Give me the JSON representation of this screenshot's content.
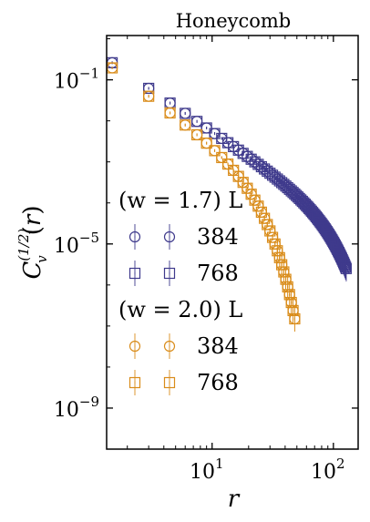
{
  "chart_data": {
    "type": "scatter",
    "title": "Honeycomb",
    "xlabel": "r",
    "ylabel": "C_v^(1/2)(r)",
    "xscale": "log",
    "yscale": "log",
    "xlim": [
      1.35,
      160
    ],
    "ylim": [
      1e-10,
      1.2
    ],
    "x_ticks": [
      {
        "value": 10,
        "base": "10",
        "exp": "1"
      },
      {
        "value": 100,
        "base": "10",
        "exp": "2"
      }
    ],
    "y_ticks": [
      {
        "value": 0.1,
        "base": "10",
        "exp": "−1"
      },
      {
        "value": 1e-05,
        "base": "10",
        "exp": "−5"
      },
      {
        "value": 1e-09,
        "base": "10",
        "exp": "−9"
      }
    ],
    "colors": {
      "purple": "#3f3a8c",
      "orange": "#d98c1a"
    },
    "legend": {
      "placement": "center-left",
      "groups": [
        {
          "header": "(w = 1.7) L",
          "color": "purple",
          "entries": [
            {
              "marker": "circle",
              "label": "384"
            },
            {
              "marker": "square",
              "label": "768"
            }
          ]
        },
        {
          "header": "(w = 2.0) L",
          "color": "orange",
          "entries": [
            {
              "marker": "circle",
              "label": "384"
            },
            {
              "marker": "square",
              "label": "768"
            }
          ]
        }
      ]
    },
    "series": [
      {
        "color": "purple",
        "marker": "circle",
        "L": 384,
        "x_range": [
          1.5,
          128
        ],
        "y_at_x1": 0.55,
        "decay_exp": 2.0,
        "xi": 75,
        "x_center": 128
      },
      {
        "color": "purple",
        "marker": "square",
        "L": 768,
        "x_range": [
          1.5,
          128
        ],
        "y_at_x1": 0.55,
        "decay_exp": 2.0,
        "xi": 75,
        "x_center": 128
      },
      {
        "color": "orange",
        "marker": "circle",
        "L": 384,
        "x_range": [
          1.5,
          48
        ],
        "y_at_x1": 0.45,
        "decay_exp": 2.2,
        "xi": 18,
        "x_center": 48
      },
      {
        "color": "orange",
        "marker": "square",
        "L": 768,
        "x_range": [
          1.5,
          48
        ],
        "y_at_x1": 0.45,
        "decay_exp": 2.2,
        "xi": 18,
        "x_center": 48
      }
    ]
  }
}
